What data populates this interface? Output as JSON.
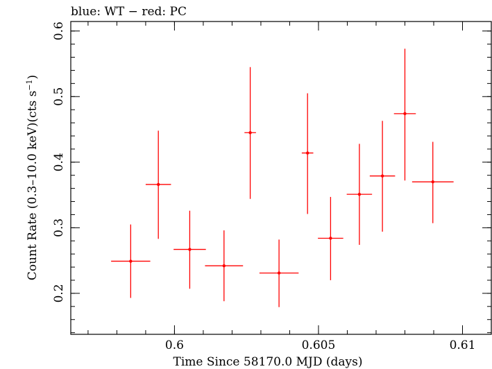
{
  "chart_data": {
    "type": "scatter",
    "title": "blue: WT − red: PC",
    "xlabel": "Time Since 58170.0 MJD (days)",
    "ylabel_main": "Count Rate (0.3–10.0 keV)(cts s",
    "ylabel_sup": "−1",
    "ylabel_end": ")",
    "xlim": [
      0.5964,
      0.611
    ],
    "ylim": [
      0.1375,
      0.6145
    ],
    "xticks": [
      0.6,
      0.605,
      0.61
    ],
    "xtick_labels": [
      "0.6",
      "0.605",
      "0.61"
    ],
    "yticks": [
      0.2,
      0.3,
      0.4,
      0.5,
      0.6
    ],
    "ytick_labels": [
      "0.2",
      "0.3",
      "0.4",
      "0.5",
      "0.6"
    ],
    "grid": false,
    "series": [
      {
        "name": "PC",
        "color": "#ff0000",
        "points": [
          {
            "x": 0.59848,
            "y": 0.249,
            "xerr": 0.00068,
            "ylo": 0.193,
            "yhi": 0.305
          },
          {
            "x": 0.59944,
            "y": 0.366,
            "xerr": 0.00044,
            "ylo": 0.283,
            "yhi": 0.448
          },
          {
            "x": 0.60053,
            "y": 0.267,
            "xerr": 0.00056,
            "ylo": 0.207,
            "yhi": 0.326
          },
          {
            "x": 0.60172,
            "y": 0.242,
            "xerr": 0.00066,
            "ylo": 0.188,
            "yhi": 0.296
          },
          {
            "x": 0.60263,
            "y": 0.445,
            "xerr": 0.0002,
            "ylo": 0.344,
            "yhi": 0.545
          },
          {
            "x": 0.60363,
            "y": 0.231,
            "xerr": 0.00068,
            "ylo": 0.179,
            "yhi": 0.282
          },
          {
            "x": 0.60462,
            "y": 0.414,
            "xerr": 0.0002,
            "ylo": 0.321,
            "yhi": 0.505
          },
          {
            "x": 0.60542,
            "y": 0.284,
            "xerr": 0.00044,
            "ylo": 0.22,
            "yhi": 0.347
          },
          {
            "x": 0.60642,
            "y": 0.351,
            "xerr": 0.00044,
            "ylo": 0.274,
            "yhi": 0.428
          },
          {
            "x": 0.60722,
            "y": 0.379,
            "xerr": 0.00044,
            "ylo": 0.294,
            "yhi": 0.463
          },
          {
            "x": 0.608,
            "y": 0.474,
            "xerr": 0.00038,
            "ylo": 0.372,
            "yhi": 0.573
          },
          {
            "x": 0.60897,
            "y": 0.37,
            "xerr": 0.00072,
            "ylo": 0.307,
            "yhi": 0.431
          }
        ]
      }
    ]
  }
}
